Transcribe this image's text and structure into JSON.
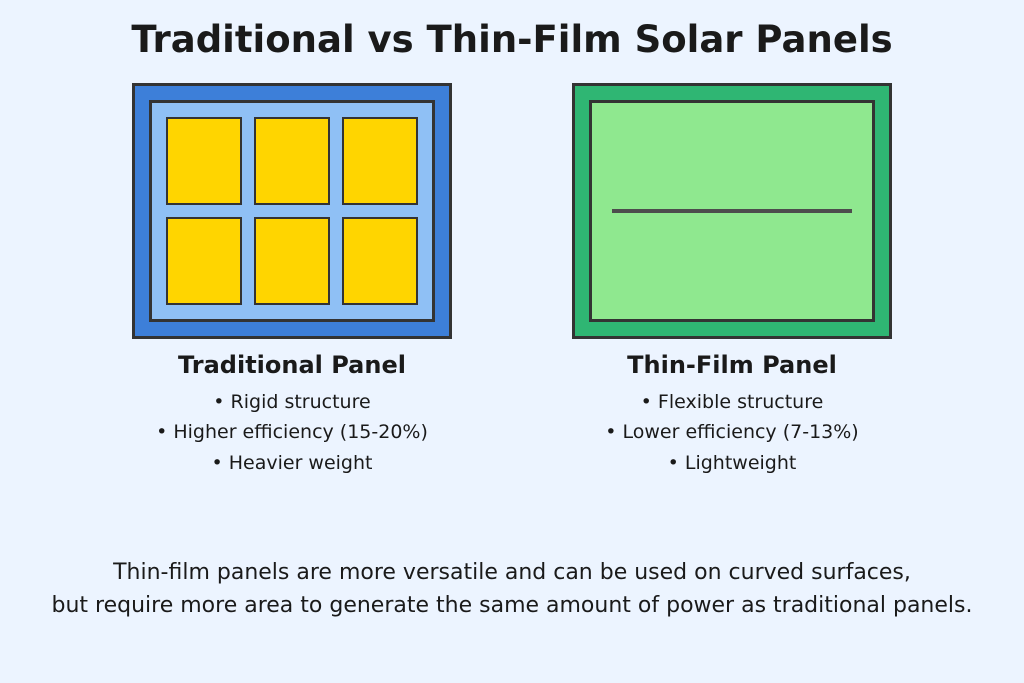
{
  "type": "infographic",
  "background_color": "#ecf4ff",
  "text_color": "#1a1a1a",
  "title": {
    "text": "Traditional vs Thin-Film Solar Panels",
    "fontsize": 37,
    "fontweight": 700
  },
  "panels": {
    "traditional": {
      "label": "Traditional Panel",
      "label_fontsize": 24,
      "frame_outer_color": "#3d7fd9",
      "frame_inner_color": "#8fc0f5",
      "border_color": "#333333",
      "cell_color": "#ffd500",
      "cell_grid": {
        "rows": 2,
        "cols": 3
      },
      "bullets": [
        "Rigid structure",
        "Higher efficiency (15-20%)",
        "Heavier weight"
      ]
    },
    "thinfilm": {
      "label": "Thin-Film Panel",
      "label_fontsize": 24,
      "frame_outer_color": "#2fb673",
      "frame_inner_color": "#8fe88f",
      "border_color": "#333333",
      "line_color": "#4d4d4d",
      "bullets": [
        "Flexible structure",
        "Lower efficiency (7-13%)",
        "Lightweight"
      ]
    }
  },
  "footnote": {
    "line1": "Thin-film panels are more versatile and can be used on curved surfaces,",
    "line2": "but require more area to generate the same amount of power as traditional panels.",
    "fontsize": 22
  }
}
